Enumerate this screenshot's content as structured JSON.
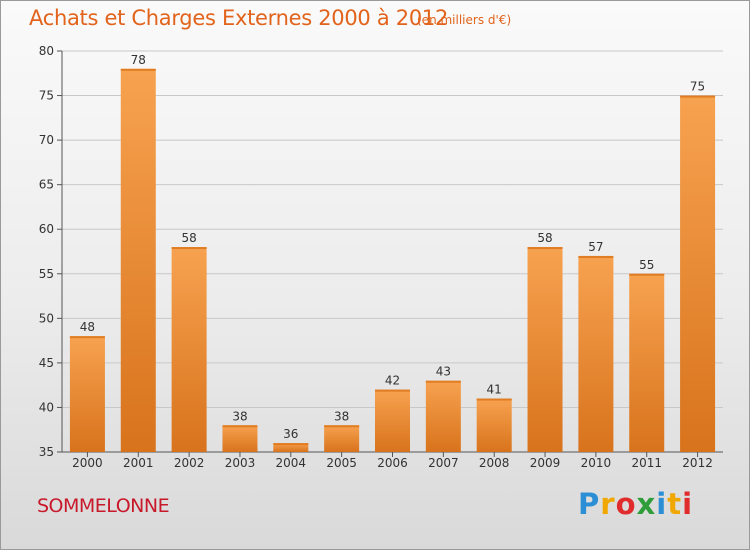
{
  "chart_data": {
    "type": "bar",
    "title": "Achats et Charges Externes 2000 à 2012",
    "subtitle": "(en milliers d'€)",
    "categories": [
      "2000",
      "2001",
      "2002",
      "2003",
      "2004",
      "2005",
      "2006",
      "2007",
      "2008",
      "2009",
      "2010",
      "2011",
      "2012"
    ],
    "values": [
      48,
      78,
      58,
      38,
      36,
      38,
      42,
      43,
      41,
      58,
      57,
      55,
      75
    ],
    "ylim": [
      35,
      80
    ],
    "yticks": [
      35,
      40,
      45,
      50,
      55,
      60,
      65,
      70,
      75,
      80
    ],
    "grid": true,
    "bar_color_light": "#f7a250",
    "bar_color_dark": "#d8731c"
  },
  "location": "SOMMELONNE",
  "brand": {
    "letters": [
      "P",
      "r",
      "o",
      "x",
      "i",
      "t",
      "i"
    ],
    "colors": [
      "#2c8fd6",
      "#f0a800",
      "#e02c2c",
      "#2f9e3a",
      "#2c8fd6",
      "#f0a800",
      "#e02c2c"
    ]
  }
}
